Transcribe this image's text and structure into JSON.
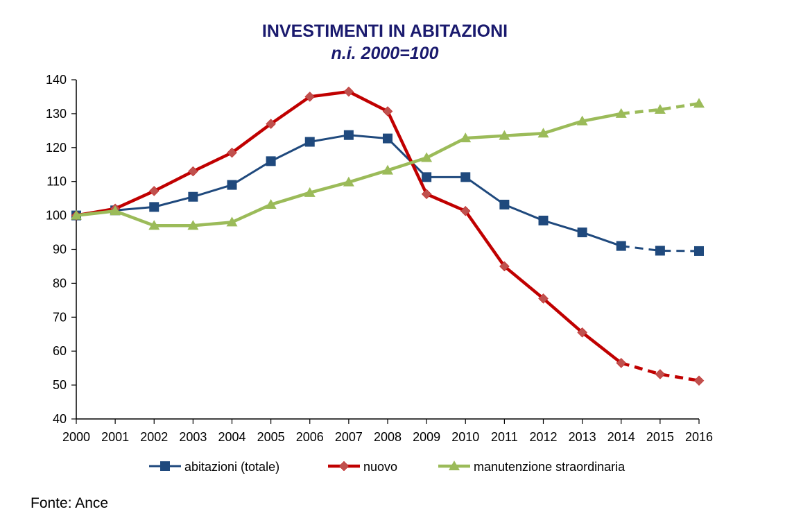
{
  "chart_data": {
    "type": "line",
    "title": "INVESTIMENTI IN ABITAZIONI",
    "subtitle": "n.i. 2000=100",
    "xlabel": "",
    "ylabel": "",
    "categories": [
      "2000",
      "2001",
      "2002",
      "2003",
      "2004",
      "2005",
      "2006",
      "2007",
      "2008",
      "2009",
      "2010",
      "2011",
      "2012",
      "2013",
      "2014",
      "2015",
      "2016"
    ],
    "ylim": [
      40,
      140
    ],
    "yticks": [
      40,
      50,
      60,
      70,
      80,
      90,
      100,
      110,
      120,
      130,
      140
    ],
    "grid": false,
    "legend_position": "bottom",
    "dashed_from_index": 14,
    "series": [
      {
        "name": "abitazioni (totale)",
        "color": "#1f497d",
        "marker": "square",
        "values": [
          100,
          101.5,
          102.5,
          105.5,
          109,
          116,
          121.7,
          123.7,
          122.7,
          111.3,
          111.3,
          103.2,
          98.5,
          95,
          91,
          89.6,
          89.5
        ]
      },
      {
        "name": "nuovo",
        "color": "#c00000",
        "marker": "diamond",
        "values": [
          100,
          102,
          107.2,
          113,
          118.5,
          127,
          135,
          136.5,
          130.7,
          106.3,
          101.3,
          85,
          75.5,
          65.5,
          56.5,
          53.2,
          51.3
        ]
      },
      {
        "name": "manutenzione straordinaria",
        "color": "#9bbb59",
        "marker": "triangle",
        "values": [
          100,
          101.3,
          97,
          97,
          98,
          103.2,
          106.7,
          109.8,
          113.3,
          117,
          122.8,
          123.5,
          124.2,
          127.8,
          130,
          131.2,
          133
        ]
      }
    ]
  },
  "source": "Fonte: Ance"
}
